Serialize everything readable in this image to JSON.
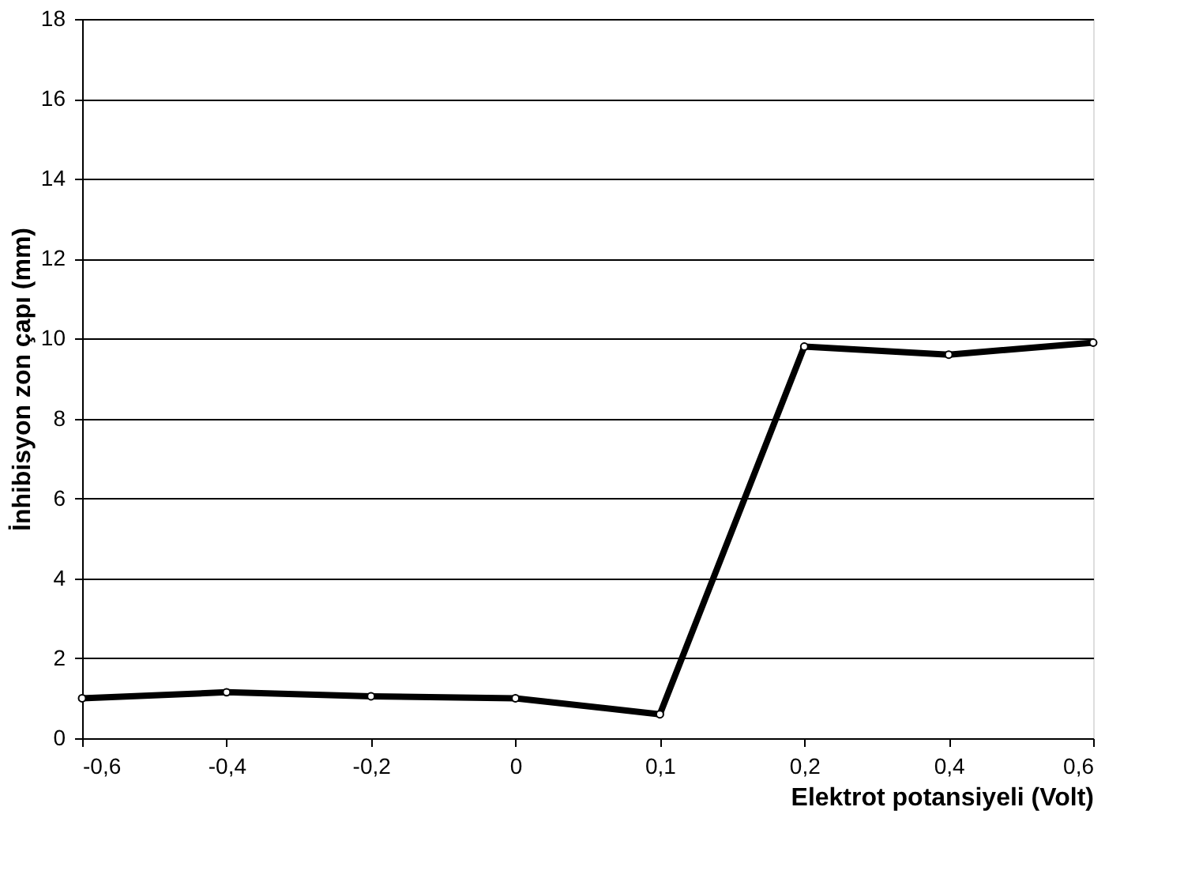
{
  "chart_data": {
    "type": "line",
    "xlabel": "Elektrot potansiyeli (Volt)",
    "ylabel": "İnhibisyon zon çapı (mm)",
    "categories": [
      "-0,6",
      "-0,4",
      "-0,2",
      "0",
      "0,1",
      "0,2",
      "0,4",
      "0,6"
    ],
    "series": [
      {
        "color": "#000000",
        "values": [
          1.0,
          1.15,
          1.05,
          1.0,
          0.6,
          9.8,
          9.6,
          9.9
        ]
      }
    ],
    "ylim": [
      0,
      18
    ],
    "yticks": [
      0,
      2,
      4,
      6,
      8,
      10,
      12,
      14,
      16,
      18
    ],
    "grid": "y",
    "marker": "circle",
    "line_style": "solid"
  }
}
